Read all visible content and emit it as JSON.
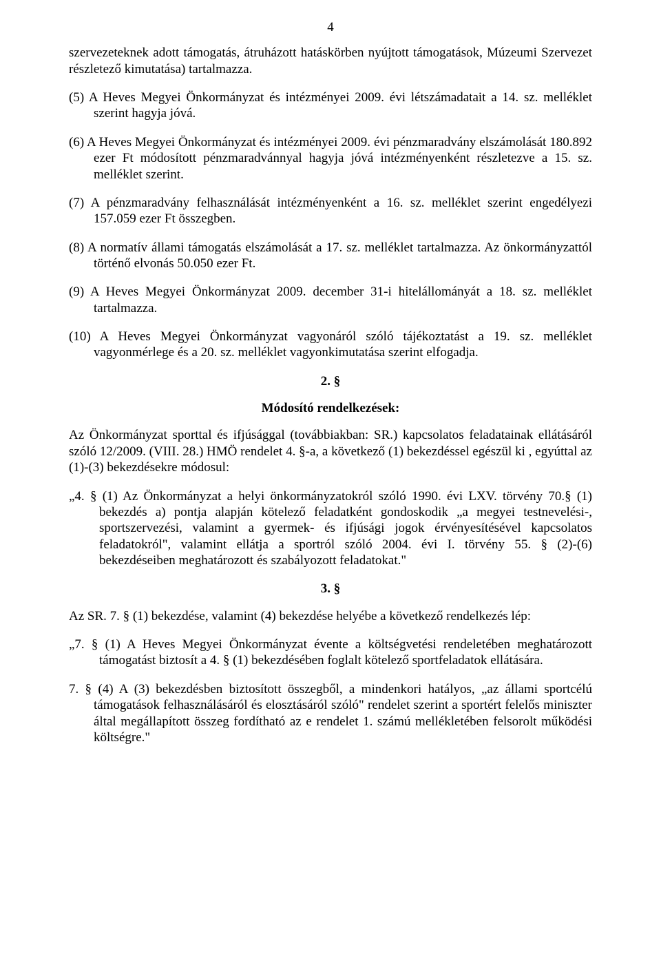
{
  "pageNumber": "4",
  "p1": "szervezeteknek adott támogatás, átruházott hatáskörben nyújtott támogatások, Múzeumi Szervezet részletező kimutatása) tartalmazza.",
  "p2": "(5) A Heves Megyei Önkormányzat és intézményei 2009. évi létszámadatait a 14. sz. melléklet szerint hagyja jóvá.",
  "p3": "(6) A Heves Megyei Önkormányzat és intézményei 2009. évi pénzmaradvány elszámolását 180.892 ezer Ft módosított pénzmaradvánnyal hagyja jóvá intézményenként részletezve a 15. sz. melléklet szerint.",
  "p4": "(7) A pénzmaradvány felhasználását intézményenként a 16. sz. melléklet szerint engedélyezi 157.059 ezer Ft összegben.",
  "p5": "(8) A normatív állami támogatás elszámolását a 17. sz. melléklet tartalmazza. Az önkormányzattól történő elvonás 50.050 ezer Ft.",
  "p6": "(9) A Heves Megyei Önkormányzat 2009. december 31-i hitelállományát a 18. sz. melléklet tartalmazza.",
  "p7": "(10) A Heves Megyei Önkormányzat vagyonáról szóló tájékoztatást a 19. sz. melléklet vagyonmérlege és a 20. sz. melléklet vagyonkimutatása szerint elfogadja.",
  "s2": "2. §",
  "s2title": "Módosító rendelkezések:",
  "p8": "Az Önkormányzat sporttal és ifjúsággal (továbbiakban: SR.) kapcsolatos feladatainak ellátásáról szóló 12/2009. (VIII. 28.) HMÖ rendelet 4. §-a, a következő (1) bekezdéssel egészül ki , egyúttal az (1)-(3) bekezdésekre módosul:",
  "p9": "„4. § (1) Az Önkormányzat a helyi önkormányzatokról szóló 1990. évi LXV. törvény 70.§ (1) bekezdés a) pontja alapján kötelező feladatként gondoskodik „a megyei testnevelési-, sportszervezési, valamint a gyermek- és ifjúsági jogok érvényesítésével kapcsolatos feladatokról\", valamint ellátja a sportról szóló 2004. évi I. törvény 55. § (2)-(6) bekezdéseiben meghatározott és szabályozott feladatokat.\"",
  "s3": "3. §",
  "p10": "Az SR. 7. § (1) bekezdése, valamint (4) bekezdése helyébe a következő rendelkezés lép:",
  "p11": "„7. § (1) A Heves Megyei Önkormányzat évente a költségvetési rendeletében meghatározott támogatást biztosít a 4. § (1) bekezdésében foglalt kötelező sportfeladatok ellátására.",
  "p12": "7. § (4) A (3) bekezdésben biztosított összegből, a mindenkori hatályos, „az állami sportcélú támogatások felhasználásáról és elosztásáról szóló\" rendelet szerint a sportért felelős miniszter által megállapított összeg fordítható az e rendelet 1. számú mellékletében felsorolt működési költségre.\""
}
